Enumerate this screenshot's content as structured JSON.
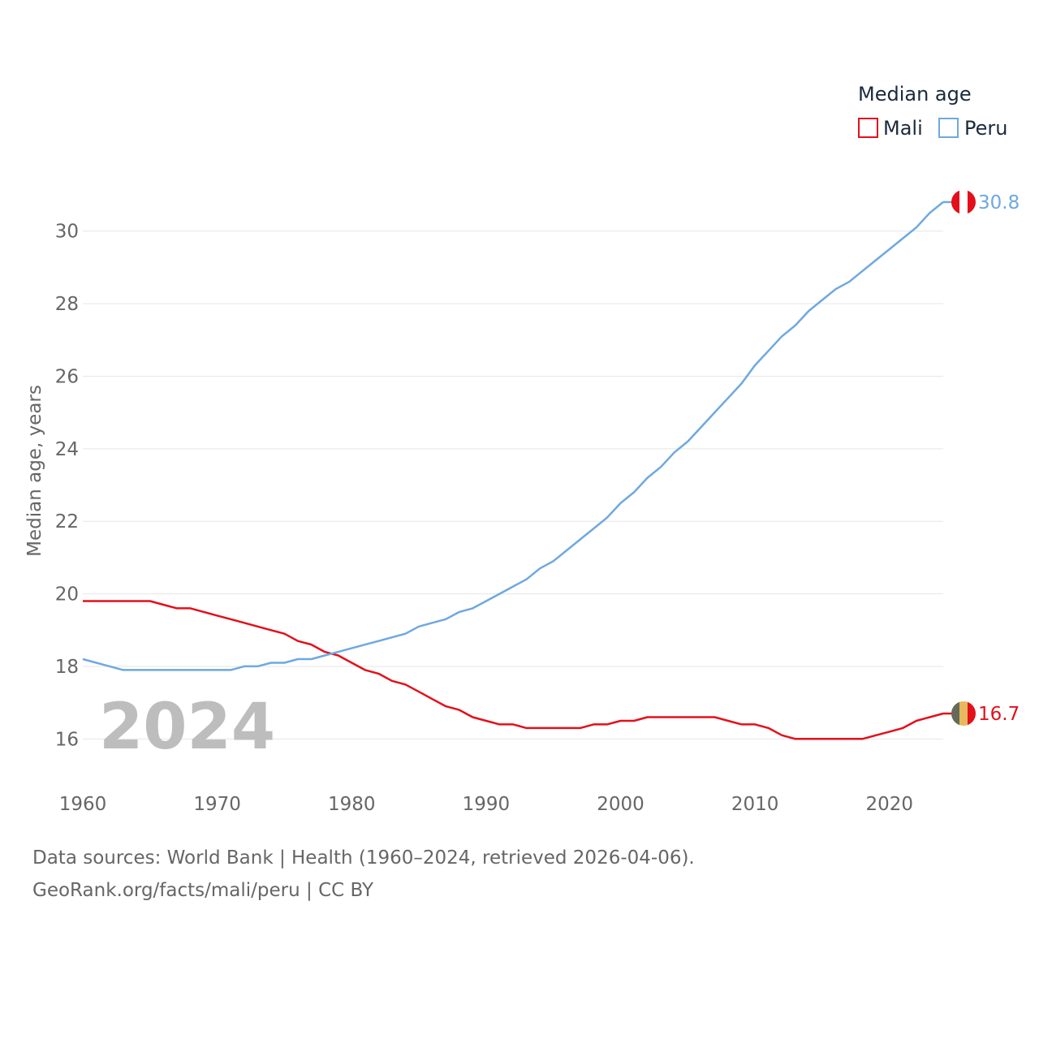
{
  "chart_data": {
    "type": "line",
    "legend_title": "Median age",
    "ylabel": "Median age, years",
    "xlim": [
      1960,
      2024
    ],
    "ylim": [
      15,
      31
    ],
    "x_ticks": [
      1960,
      1970,
      1980,
      1990,
      2000,
      2010,
      2020
    ],
    "y_ticks": [
      16,
      18,
      20,
      22,
      24,
      26,
      28,
      30
    ],
    "grid": true,
    "legend_position": "top-right",
    "year_label": "2024",
    "x": [
      1960,
      1961,
      1962,
      1963,
      1964,
      1965,
      1966,
      1967,
      1968,
      1969,
      1970,
      1971,
      1972,
      1973,
      1974,
      1975,
      1976,
      1977,
      1978,
      1979,
      1980,
      1981,
      1982,
      1983,
      1984,
      1985,
      1986,
      1987,
      1988,
      1989,
      1990,
      1991,
      1992,
      1993,
      1994,
      1995,
      1996,
      1997,
      1998,
      1999,
      2000,
      2001,
      2002,
      2003,
      2004,
      2005,
      2006,
      2007,
      2008,
      2009,
      2010,
      2011,
      2012,
      2013,
      2014,
      2015,
      2016,
      2017,
      2018,
      2019,
      2020,
      2021,
      2022,
      2023,
      2024
    ],
    "series": [
      {
        "name": "Mali",
        "color": "#e3101b",
        "flag": "mali-flag-icon",
        "end_label": "16.7",
        "values": [
          19.8,
          19.8,
          19.8,
          19.8,
          19.8,
          19.8,
          19.7,
          19.6,
          19.6,
          19.5,
          19.4,
          19.3,
          19.2,
          19.1,
          19.0,
          18.9,
          18.7,
          18.6,
          18.4,
          18.3,
          18.1,
          17.9,
          17.8,
          17.6,
          17.5,
          17.3,
          17.1,
          16.9,
          16.8,
          16.6,
          16.5,
          16.4,
          16.4,
          16.3,
          16.3,
          16.3,
          16.3,
          16.3,
          16.4,
          16.4,
          16.5,
          16.5,
          16.6,
          16.6,
          16.6,
          16.6,
          16.6,
          16.6,
          16.5,
          16.4,
          16.4,
          16.3,
          16.1,
          16.0,
          16.0,
          16.0,
          16.0,
          16.0,
          16.0,
          16.1,
          16.2,
          16.3,
          16.5,
          16.6,
          16.7
        ]
      },
      {
        "name": "Peru",
        "color": "#6fa8e0",
        "flag": "peru-flag-icon",
        "end_label": "30.8",
        "values": [
          18.2,
          18.1,
          18.0,
          17.9,
          17.9,
          17.9,
          17.9,
          17.9,
          17.9,
          17.9,
          17.9,
          17.9,
          18.0,
          18.0,
          18.1,
          18.1,
          18.2,
          18.2,
          18.3,
          18.4,
          18.5,
          18.6,
          18.7,
          18.8,
          18.9,
          19.1,
          19.2,
          19.3,
          19.5,
          19.6,
          19.8,
          20.0,
          20.2,
          20.4,
          20.7,
          20.9,
          21.2,
          21.5,
          21.8,
          22.1,
          22.5,
          22.8,
          23.2,
          23.5,
          23.9,
          24.2,
          24.6,
          25.0,
          25.4,
          25.8,
          26.3,
          26.7,
          27.1,
          27.4,
          27.8,
          28.1,
          28.4,
          28.6,
          28.9,
          29.2,
          29.5,
          29.8,
          30.1,
          30.5,
          30.8
        ]
      }
    ]
  },
  "footer": {
    "sources": "Data sources: World Bank | Health (1960–2024, retrieved 2026-04-06).",
    "credit": "GeoRank.org/facts/mali/peru | CC BY"
  }
}
